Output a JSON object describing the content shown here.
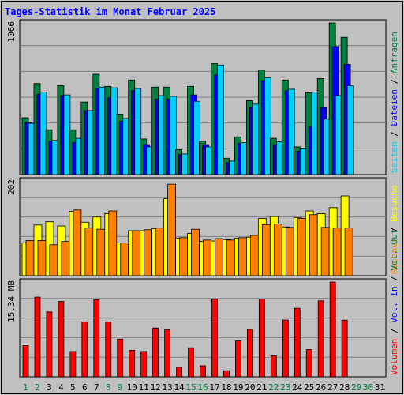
{
  "title": "Tages-Statistik im Monat Februar 2025",
  "chart_data": {
    "type": "bar",
    "title": "Tages-Statistik im Monat Februar 2025",
    "categories": [
      "1",
      "2",
      "3",
      "4",
      "5",
      "6",
      "7",
      "8",
      "9",
      "10",
      "11",
      "12",
      "13",
      "14",
      "15",
      "16",
      "17",
      "18",
      "19",
      "20",
      "21",
      "22",
      "23",
      "24",
      "25",
      "26",
      "27",
      "28",
      "29",
      "30",
      "31"
    ],
    "weekend_days": [
      "1",
      "2",
      "8",
      "9",
      "15",
      "16",
      "22",
      "23",
      "29",
      "30"
    ],
    "panels": [
      {
        "name": "requests",
        "ylabel": "1066",
        "ymax": 1066,
        "right_labels": [
          {
            "text": "Anfragen",
            "color": "#008040"
          },
          {
            "text": "Dateien",
            "color": "#0000ff"
          },
          {
            "text": "Seiten",
            "color": "#00d0ff"
          }
        ],
        "series": [
          {
            "name": "Anfragen",
            "color": "#008040",
            "values": [
              400,
              640,
              315,
              625,
              315,
              510,
              705,
              620,
              425,
              665,
              250,
              615,
              615,
              175,
              620,
              235,
              780,
              115,
              265,
              520,
              735,
              255,
              665,
              195,
              575,
              675,
              1066,
              965,
              0,
              0,
              0
            ]
          },
          {
            "name": "Dateien",
            "color": "#0000ff",
            "values": [
              365,
              565,
              235,
              555,
              225,
              450,
              605,
              540,
              375,
              590,
              210,
              530,
              530,
              140,
              560,
              210,
              700,
              85,
              220,
              470,
              660,
              210,
              590,
              165,
              335,
              470,
              900,
              775,
              0,
              0,
              0
            ]
          },
          {
            "name": "Seiten",
            "color": "#00d0ff",
            "values": [
              360,
              580,
              240,
              560,
              255,
              450,
              615,
              610,
              395,
              605,
              195,
              555,
              550,
              145,
              515,
              195,
              770,
              95,
              225,
              495,
              680,
              230,
              600,
              185,
              580,
              390,
              555,
              625,
              0,
              0,
              0
            ]
          }
        ]
      },
      {
        "name": "visits",
        "ylabel": "202",
        "ymax": 202,
        "right_labels": [
          {
            "text": "Besuche",
            "color": "#ffff00"
          },
          {
            "text": "Rechner",
            "color": "#ff8000"
          }
        ],
        "series": [
          {
            "name": "Besuche",
            "color": "#ffff00",
            "values": [
              70,
              108,
              115,
              106,
              137,
              114,
              125,
              132,
              70,
              96,
              96,
              100,
              164,
              80,
              90,
              73,
              74,
              77,
              80,
              82,
              122,
              126,
              104,
              124,
              138,
              132,
              145,
              170,
              0,
              0,
              0
            ]
          },
          {
            "name": "Rechner",
            "color": "#ff8000",
            "values": [
              75,
              75,
              66,
              73,
              140,
              102,
              99,
              138,
              70,
              96,
              98,
              102,
              195,
              81,
              99,
              76,
              79,
              76,
              81,
              86,
              109,
              110,
              103,
              122,
              130,
              103,
              102,
              102,
              0,
              0,
              0
            ]
          }
        ]
      },
      {
        "name": "volume",
        "ylabel": "15.34 MB",
        "ymax": 15.34,
        "right_labels": [
          {
            "text": "Vol. Out",
            "color": "#008040"
          },
          {
            "text": "Vol. In",
            "color": "#0000ff"
          },
          {
            "text": "Volumen",
            "color": "#ff0000"
          }
        ],
        "series": [
          {
            "name": "Volumen",
            "color": "#ff0000",
            "values": [
              5.05,
              12.9,
              10.5,
              12.2,
              4.1,
              8.9,
              12.5,
              8.9,
              6.1,
              4.3,
              4.1,
              7.9,
              7.6,
              1.6,
              4.7,
              1.8,
              12.6,
              1.0,
              5.8,
              7.7,
              12.6,
              3.4,
              9.2,
              11.1,
              4.4,
              12.3,
              15.34,
              9.18,
              0,
              0,
              0
            ]
          }
        ]
      }
    ]
  }
}
